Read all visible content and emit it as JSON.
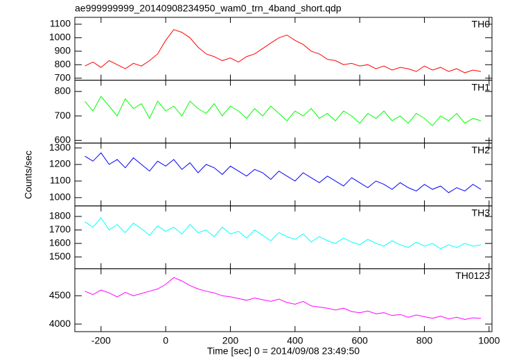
{
  "chart_data": {
    "type": "line",
    "title": "ae999999999_20140908234950_wam0_trn_4band_short.qdp",
    "x_label": "Time [sec] 0 = 2014/09/08 23:49:50",
    "y_label": "Counts/sec",
    "xlim": [
      -281,
      1009
    ],
    "xticks": [
      -200,
      0,
      200,
      400,
      600,
      800,
      1000
    ],
    "x": [
      -250,
      -225,
      -200,
      -175,
      -150,
      -125,
      -100,
      -75,
      -50,
      -25,
      0,
      25,
      50,
      75,
      100,
      125,
      150,
      175,
      200,
      225,
      250,
      275,
      300,
      325,
      350,
      375,
      400,
      425,
      450,
      475,
      500,
      525,
      550,
      575,
      600,
      625,
      650,
      675,
      700,
      725,
      750,
      775,
      800,
      825,
      850,
      875,
      900,
      925,
      950,
      975
    ],
    "series": [
      {
        "name": "TH0",
        "color": "#ff0000",
        "ylim": [
          685,
          1151
        ],
        "yticks": [
          700,
          800,
          900,
          1000,
          1100
        ],
        "values": [
          790,
          820,
          780,
          830,
          800,
          770,
          810,
          790,
          830,
          880,
          980,
          1060,
          1040,
          1000,
          930,
          880,
          860,
          830,
          850,
          820,
          860,
          880,
          920,
          960,
          1000,
          1020,
          980,
          950,
          900,
          880,
          840,
          830,
          800,
          810,
          790,
          800,
          770,
          790,
          760,
          780,
          770,
          750,
          790,
          760,
          780,
          750,
          770,
          740,
          760,
          750
        ]
      },
      {
        "name": "TH1",
        "color": "#00ff00",
        "ylim": [
          589,
          846
        ],
        "yticks": [
          600,
          700,
          800
        ],
        "values": [
          760,
          720,
          780,
          740,
          700,
          770,
          730,
          750,
          690,
          760,
          720,
          740,
          700,
          760,
          730,
          710,
          750,
          700,
          740,
          720,
          690,
          730,
          700,
          740,
          710,
          680,
          720,
          700,
          730,
          690,
          710,
          680,
          720,
          700,
          670,
          710,
          690,
          720,
          680,
          700,
          670,
          710,
          690,
          660,
          700,
          680,
          710,
          670,
          690,
          680
        ]
      },
      {
        "name": "TH2",
        "color": "#0000ff",
        "ylim": [
          950,
          1329
        ],
        "yticks": [
          1000,
          1100,
          1200,
          1300
        ],
        "values": [
          1250,
          1220,
          1270,
          1200,
          1230,
          1180,
          1240,
          1200,
          1160,
          1220,
          1190,
          1230,
          1170,
          1210,
          1150,
          1200,
          1180,
          1140,
          1190,
          1160,
          1130,
          1170,
          1150,
          1110,
          1160,
          1130,
          1100,
          1150,
          1120,
          1090,
          1130,
          1100,
          1070,
          1120,
          1090,
          1060,
          1100,
          1080,
          1050,
          1090,
          1060,
          1040,
          1080,
          1050,
          1070,
          1030,
          1060,
          1040,
          1080,
          1050
        ]
      },
      {
        "name": "TH3",
        "color": "#00ffff",
        "ylim": [
          1412,
          1878
        ],
        "yticks": [
          1500,
          1600,
          1700,
          1800
        ],
        "values": [
          1760,
          1720,
          1790,
          1700,
          1740,
          1680,
          1750,
          1710,
          1660,
          1730,
          1690,
          1720,
          1670,
          1740,
          1680,
          1700,
          1650,
          1720,
          1670,
          1690,
          1640,
          1700,
          1660,
          1620,
          1680,
          1650,
          1630,
          1670,
          1610,
          1650,
          1620,
          1600,
          1640,
          1610,
          1590,
          1630,
          1600,
          1580,
          1620,
          1590,
          1570,
          1610,
          1580,
          1600,
          1560,
          1590,
          1570,
          1600,
          1580,
          1590
        ]
      },
      {
        "name": "TH0123",
        "color": "#ff00ff",
        "ylim": [
          3866,
          4976
        ],
        "yticks": [
          4000,
          4500
        ],
        "values": [
          4580,
          4520,
          4600,
          4550,
          4480,
          4560,
          4500,
          4540,
          4580,
          4620,
          4700,
          4820,
          4760,
          4680,
          4620,
          4580,
          4550,
          4500,
          4480,
          4450,
          4420,
          4460,
          4430,
          4400,
          4440,
          4380,
          4350,
          4400,
          4320,
          4300,
          4280,
          4250,
          4280,
          4220,
          4200,
          4230,
          4180,
          4200,
          4150,
          4170,
          4120,
          4160,
          4130,
          4100,
          4140,
          4090,
          4120,
          4080,
          4110,
          4100
        ]
      }
    ]
  }
}
